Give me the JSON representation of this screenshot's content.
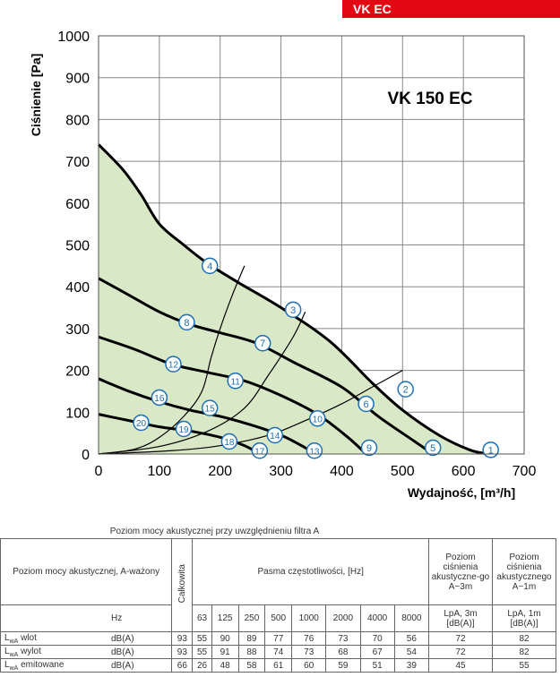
{
  "badge": "VK EC",
  "chart_data": {
    "type": "line",
    "title": "VK 150 EC",
    "ylabel": "Ciśnienie [Pa]",
    "xlabel": "Wydajność, [m³/h]",
    "xlim": [
      0,
      700
    ],
    "ylim": [
      0,
      1000
    ],
    "xticks": [
      "0",
      "100",
      "200",
      "300",
      "400",
      "500",
      "600",
      "700"
    ],
    "yticks": [
      "0",
      "100",
      "200",
      "300",
      "400",
      "500",
      "600",
      "700",
      "800",
      "900",
      "1000"
    ],
    "grid": true,
    "fan_curves": [
      {
        "points": [
          [
            0,
            740
          ],
          [
            40,
            680
          ],
          [
            70,
            620
          ],
          [
            100,
            550
          ],
          [
            140,
            500
          ],
          [
            180,
            455
          ],
          [
            230,
            410
          ],
          [
            300,
            350
          ],
          [
            380,
            270
          ],
          [
            450,
            170
          ],
          [
            500,
            105
          ],
          [
            560,
            45
          ],
          [
            610,
            10
          ],
          [
            640,
            0
          ]
        ]
      },
      {
        "points": [
          [
            0,
            420
          ],
          [
            50,
            380
          ],
          [
            100,
            340
          ],
          [
            150,
            310
          ],
          [
            200,
            290
          ],
          [
            260,
            265
          ],
          [
            320,
            220
          ],
          [
            400,
            160
          ],
          [
            460,
            90
          ],
          [
            520,
            30
          ],
          [
            550,
            0
          ]
        ]
      },
      {
        "points": [
          [
            0,
            280
          ],
          [
            60,
            250
          ],
          [
            120,
            215
          ],
          [
            180,
            195
          ],
          [
            240,
            175
          ],
          [
            300,
            140
          ],
          [
            360,
            95
          ],
          [
            410,
            40
          ],
          [
            440,
            0
          ]
        ]
      },
      {
        "points": [
          [
            0,
            180
          ],
          [
            50,
            150
          ],
          [
            100,
            125
          ],
          [
            150,
            105
          ],
          [
            200,
            90
          ],
          [
            250,
            70
          ],
          [
            300,
            45
          ],
          [
            340,
            15
          ],
          [
            355,
            0
          ]
        ]
      },
      {
        "points": [
          [
            0,
            95
          ],
          [
            50,
            80
          ],
          [
            100,
            65
          ],
          [
            150,
            55
          ],
          [
            200,
            40
          ],
          [
            240,
            20
          ],
          [
            265,
            0
          ]
        ]
      }
    ],
    "system_curves": [
      {
        "points": [
          [
            0,
            0
          ],
          [
            60,
            12
          ],
          [
            100,
            40
          ],
          [
            140,
            90
          ],
          [
            170,
            150
          ],
          [
            185,
            230
          ],
          [
            200,
            300
          ],
          [
            220,
            380
          ],
          [
            240,
            450
          ]
        ]
      },
      {
        "points": [
          [
            0,
            0
          ],
          [
            100,
            18
          ],
          [
            180,
            55
          ],
          [
            240,
            110
          ],
          [
            280,
            190
          ],
          [
            320,
            280
          ],
          [
            340,
            340
          ]
        ]
      },
      {
        "points": [
          [
            0,
            0
          ],
          [
            120,
            8
          ],
          [
            200,
            20
          ],
          [
            280,
            45
          ],
          [
            340,
            80
          ],
          [
            400,
            120
          ],
          [
            450,
            160
          ],
          [
            500,
            200
          ]
        ]
      }
    ],
    "markers": [
      {
        "label": "1",
        "x": 645,
        "y": 10
      },
      {
        "label": "2",
        "x": 505,
        "y": 155
      },
      {
        "label": "3",
        "x": 320,
        "y": 345
      },
      {
        "label": "4",
        "x": 183,
        "y": 450
      },
      {
        "label": "5",
        "x": 550,
        "y": 15
      },
      {
        "label": "6",
        "x": 440,
        "y": 120
      },
      {
        "label": "7",
        "x": 270,
        "y": 265
      },
      {
        "label": "8",
        "x": 145,
        "y": 315
      },
      {
        "label": "9",
        "x": 445,
        "y": 15
      },
      {
        "label": "10",
        "x": 360,
        "y": 85
      },
      {
        "label": "11",
        "x": 225,
        "y": 175
      },
      {
        "label": "12",
        "x": 123,
        "y": 215
      },
      {
        "label": "13",
        "x": 355,
        "y": 8
      },
      {
        "label": "14",
        "x": 290,
        "y": 45
      },
      {
        "label": "15",
        "x": 183,
        "y": 110
      },
      {
        "label": "16",
        "x": 100,
        "y": 135
      },
      {
        "label": "17",
        "x": 265,
        "y": 8
      },
      {
        "label": "18",
        "x": 215,
        "y": 30
      },
      {
        "label": "19",
        "x": 140,
        "y": 60
      },
      {
        "label": "20",
        "x": 70,
        "y": 75
      }
    ]
  },
  "table": {
    "title": "Poziom mocy akustycznej przy uwzględnieniu filtra A",
    "row_header": "Poziom mocy akustycznej, A-ważony",
    "total_header": "Całkowita",
    "bands_header": "Pasma częstotliwości, [Hz]",
    "lpa3_header": "Poziom ciśnienia akustyczne-go A~3m",
    "lpa1_header": "Poziom ciśnienia akustycznego A~1m",
    "unit_hz": "Hz",
    "bands": [
      "63",
      "125",
      "250",
      "500",
      "1000",
      "2000",
      "4000",
      "8000"
    ],
    "lpa3_unit": "LpA, 3m [dB(A)]",
    "lpa1_unit": "LpA, 1m [dB(A)]",
    "rows": [
      {
        "name_main": "L",
        "name_sub": "wA",
        "name_rest": " wlot",
        "unit": "dB(A)",
        "total": "93",
        "values": [
          "55",
          "90",
          "89",
          "77",
          "76",
          "73",
          "70",
          "56"
        ],
        "lpa3": "72",
        "lpa1": "82"
      },
      {
        "name_main": "L",
        "name_sub": "wA",
        "name_rest": " wylot",
        "unit": "dB(A)",
        "total": "93",
        "values": [
          "55",
          "91",
          "88",
          "74",
          "73",
          "68",
          "67",
          "54"
        ],
        "lpa3": "72",
        "lpa1": "82"
      },
      {
        "name_main": "L",
        "name_sub": "wA",
        "name_rest": " emitowane",
        "unit": "dB(A)",
        "total": "66",
        "values": [
          "26",
          "48",
          "58",
          "61",
          "60",
          "59",
          "51",
          "39"
        ],
        "lpa3": "45",
        "lpa1": "55"
      }
    ]
  }
}
